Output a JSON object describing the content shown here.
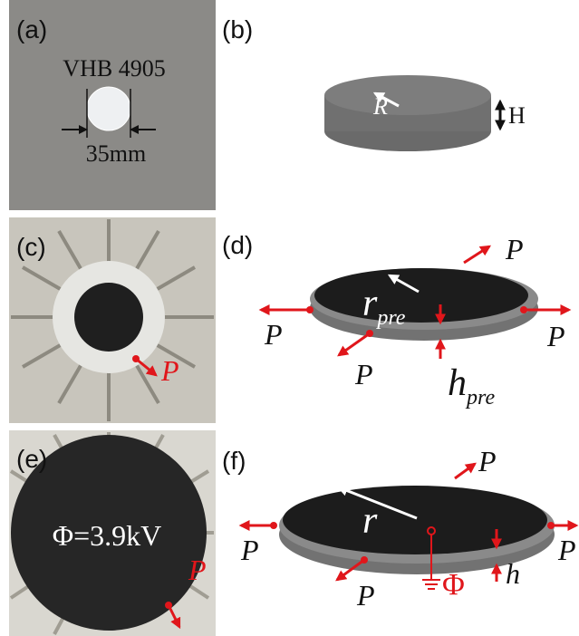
{
  "panels": [
    {
      "label": "(a)",
      "material": "VHB 4905",
      "diameter": "35mm"
    },
    {
      "label": "(b)",
      "radius": "R",
      "height": "H"
    },
    {
      "label": "(c)",
      "force": "P"
    },
    {
      "label": "(d)",
      "forces": [
        "P",
        "P",
        "P",
        "P"
      ],
      "radius": {
        "main": "r",
        "sub": "pre"
      },
      "thickness": {
        "main": "h",
        "sub": "pre"
      }
    },
    {
      "label": "(e)",
      "voltage": "Φ=3.9kV",
      "force": "P"
    },
    {
      "label": "(f)",
      "forces": [
        "P",
        "P",
        "P",
        "P"
      ],
      "radius": "r",
      "thickness": "h",
      "potential": "Φ"
    }
  ]
}
